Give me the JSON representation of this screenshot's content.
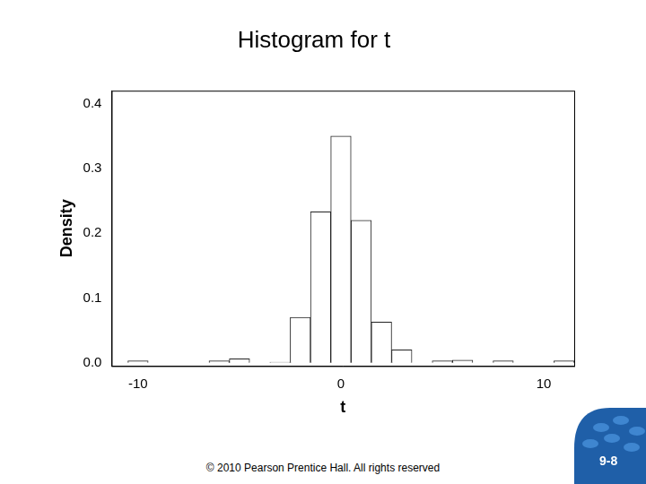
{
  "chart_data": {
    "type": "histogram",
    "title": "Histogram for t",
    "x_label": "t",
    "y_label": "Density",
    "bins": [
      -10.5,
      -9.5,
      -8.5,
      -7.5,
      -6.5,
      -5.5,
      -4.5,
      -3.5,
      -2.5,
      -1.5,
      -0.5,
      0.5,
      1.5,
      2.5,
      3.5,
      4.5,
      5.5,
      6.5,
      7.5,
      8.5,
      9.5,
      10.5,
      11.5
    ],
    "values": [
      0.003,
      0,
      0,
      0,
      0.003,
      0.006,
      0,
      0.001,
      0.07,
      0.233,
      0.35,
      0.22,
      0.063,
      0.02,
      0,
      0.003,
      0.004,
      0,
      0.003,
      0,
      0,
      0.003
    ],
    "color": "#ffffff",
    "xlim": [
      -11.3,
      11.5
    ],
    "xticks": [
      -10,
      0,
      10
    ],
    "ylim": [
      -0.005,
      0.42
    ],
    "yticks": [
      {
        "value": 0,
        "label": "0.0"
      },
      {
        "value": 0.1,
        "label": "0.1"
      },
      {
        "value": 0.2,
        "label": "0.2"
      },
      {
        "value": 0.3,
        "label": "0.3"
      },
      {
        "value": 0.4,
        "label": "0.4"
      }
    ],
    "grid": false
  },
  "slide": {
    "footer": "© 2010 Pearson Prentice Hall. All rights reserved",
    "page_number": "9-8"
  }
}
